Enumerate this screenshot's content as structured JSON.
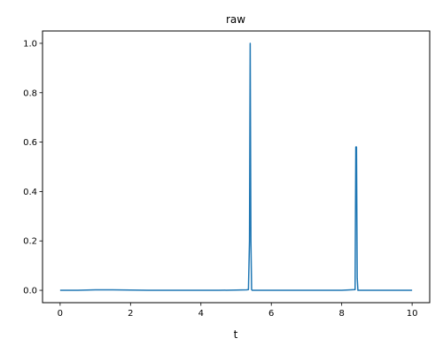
{
  "chart_data": {
    "type": "line",
    "title": "raw",
    "xlabel": "t",
    "ylabel": "",
    "xlim": [
      -0.5,
      10.5
    ],
    "ylim": [
      -0.05,
      1.05
    ],
    "grid": false,
    "legend": "none",
    "x_ticks": [
      0,
      2,
      4,
      6,
      8,
      10
    ],
    "x_tick_labels": [
      "0",
      "2",
      "4",
      "6",
      "8",
      "10"
    ],
    "y_ticks": [
      0.0,
      0.2,
      0.4,
      0.6,
      0.8,
      1.0
    ],
    "y_tick_labels": [
      "0.0",
      "0.2",
      "0.4",
      "0.6",
      "0.8",
      "1.0"
    ],
    "series": [
      {
        "color": "#1f77b4",
        "x": [
          0,
          0.5,
          1.0,
          1.5,
          2.0,
          2.5,
          3.0,
          3.5,
          4.0,
          4.5,
          5.0,
          5.3,
          5.35,
          5.38,
          5.4,
          5.42,
          5.44,
          5.46,
          5.5,
          6.0,
          6.5,
          7.0,
          7.5,
          8.0,
          8.38,
          8.4,
          8.42,
          8.44,
          8.46,
          8.5,
          9.0,
          9.5,
          10.0
        ],
        "y": [
          0.0,
          0.0,
          0.002,
          0.002,
          0.001,
          0.0,
          0.0,
          0.0,
          0.0,
          0.0,
          0.001,
          0.002,
          0.003,
          0.2,
          1.0,
          0.2,
          0.003,
          0.0,
          0.0,
          0.0,
          0.0,
          0.0,
          0.0,
          0.0,
          0.003,
          0.58,
          0.58,
          0.05,
          0.0,
          0.0,
          0.0,
          0.0,
          0.0
        ]
      }
    ]
  }
}
